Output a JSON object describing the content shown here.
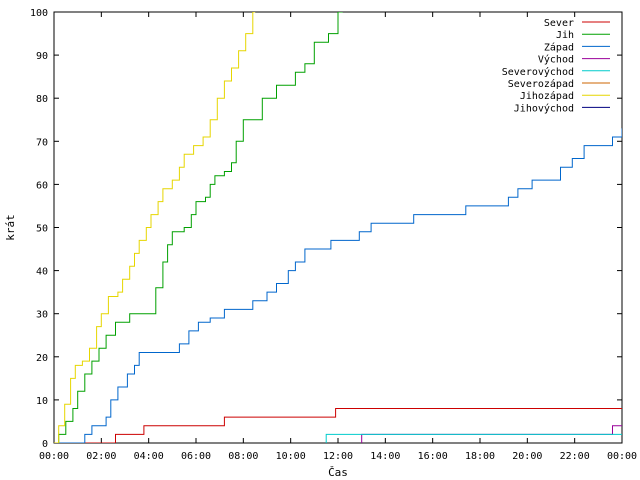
{
  "chart_data": {
    "type": "line",
    "title": "",
    "xlabel": "Čas",
    "ylabel": "krát",
    "xlim": [
      0,
      24
    ],
    "ylim": [
      0,
      100
    ],
    "x_ticks": [
      0,
      2,
      4,
      6,
      8,
      10,
      12,
      14,
      16,
      18,
      20,
      22,
      24
    ],
    "x_tick_labels": [
      "00:00",
      "02:00",
      "04:00",
      "06:00",
      "08:00",
      "10:00",
      "12:00",
      "14:00",
      "16:00",
      "18:00",
      "20:00",
      "22:00",
      "00:00"
    ],
    "y_ticks": [
      0,
      10,
      20,
      30,
      40,
      50,
      60,
      70,
      80,
      90,
      100
    ],
    "y_tick_labels": [
      "0",
      "10",
      "20",
      "30",
      "40",
      "50",
      "60",
      "70",
      "80",
      "90",
      "100"
    ],
    "legend_position": "top-right",
    "grid": false,
    "series": [
      {
        "name": "Sever",
        "color": "#cc0000",
        "points": [
          [
            0,
            0
          ],
          [
            2.6,
            0
          ],
          [
            2.6,
            2
          ],
          [
            3.8,
            2
          ],
          [
            3.8,
            4
          ],
          [
            7.2,
            4
          ],
          [
            7.2,
            6
          ],
          [
            11.9,
            6
          ],
          [
            11.9,
            8
          ],
          [
            24,
            8
          ]
        ]
      },
      {
        "name": "Jih",
        "color": "#00a000",
        "points": [
          [
            0,
            0
          ],
          [
            0.2,
            2
          ],
          [
            0.5,
            5
          ],
          [
            0.8,
            8
          ],
          [
            1,
            12
          ],
          [
            1.3,
            16
          ],
          [
            1.6,
            19
          ],
          [
            1.9,
            22
          ],
          [
            2.2,
            25
          ],
          [
            2.6,
            28
          ],
          [
            3.2,
            30
          ],
          [
            3.5,
            30
          ],
          [
            4,
            30
          ],
          [
            4.3,
            36
          ],
          [
            4.6,
            42
          ],
          [
            4.8,
            46
          ],
          [
            5,
            49
          ],
          [
            5.5,
            50
          ],
          [
            5.8,
            53
          ],
          [
            6,
            56
          ],
          [
            6.4,
            57
          ],
          [
            6.6,
            60
          ],
          [
            6.8,
            62
          ],
          [
            7.2,
            63
          ],
          [
            7.5,
            65
          ],
          [
            7.7,
            70
          ],
          [
            8,
            75
          ],
          [
            8.5,
            75
          ],
          [
            8.8,
            80
          ],
          [
            9.4,
            83
          ],
          [
            9.8,
            83
          ],
          [
            10.2,
            86
          ],
          [
            10.6,
            88
          ],
          [
            11,
            93
          ],
          [
            11.6,
            95
          ],
          [
            12,
            100
          ],
          [
            12.2,
            100
          ]
        ]
      },
      {
        "name": "Západ",
        "color": "#0066cc",
        "points": [
          [
            0,
            0
          ],
          [
            1.3,
            2
          ],
          [
            1.6,
            4
          ],
          [
            2.2,
            6
          ],
          [
            2.4,
            10
          ],
          [
            2.7,
            13
          ],
          [
            3.1,
            16
          ],
          [
            3.4,
            18
          ],
          [
            3.6,
            21
          ],
          [
            4.5,
            21
          ],
          [
            5.1,
            21
          ],
          [
            5.3,
            23
          ],
          [
            5.7,
            26
          ],
          [
            6.1,
            28
          ],
          [
            6.6,
            29
          ],
          [
            7.2,
            31
          ],
          [
            8.2,
            31
          ],
          [
            8.4,
            33
          ],
          [
            9,
            35
          ],
          [
            9.4,
            37
          ],
          [
            9.9,
            40
          ],
          [
            10.2,
            42
          ],
          [
            10.6,
            45
          ],
          [
            11.5,
            45
          ],
          [
            11.7,
            47
          ],
          [
            12.5,
            47
          ],
          [
            12.9,
            49
          ],
          [
            13.4,
            51
          ],
          [
            14.8,
            51
          ],
          [
            15.2,
            53
          ],
          [
            17,
            53
          ],
          [
            17.4,
            55
          ],
          [
            19,
            55
          ],
          [
            19.2,
            57
          ],
          [
            19.6,
            59
          ],
          [
            20.2,
            61
          ],
          [
            21.2,
            61
          ],
          [
            21.4,
            64
          ],
          [
            21.9,
            66
          ],
          [
            22.4,
            69
          ],
          [
            23.4,
            69
          ],
          [
            23.6,
            71
          ],
          [
            24,
            73
          ]
        ]
      },
      {
        "name": "Východ",
        "color": "#990099",
        "points": [
          [
            13,
            0
          ],
          [
            13,
            2
          ],
          [
            23.4,
            2
          ],
          [
            23.6,
            4
          ],
          [
            24,
            4
          ]
        ]
      },
      {
        "name": "Severovýchod",
        "color": "#00cccc",
        "points": [
          [
            11.5,
            0
          ],
          [
            11.5,
            2
          ],
          [
            24,
            2
          ]
        ]
      },
      {
        "name": "Severozápad",
        "color": "#cc6600",
        "points": []
      },
      {
        "name": "Jihozápad",
        "color": "#e6d600",
        "points": [
          [
            0,
            0
          ],
          [
            0.2,
            4
          ],
          [
            0.45,
            9
          ],
          [
            0.7,
            15
          ],
          [
            0.9,
            18
          ],
          [
            1.2,
            19
          ],
          [
            1.5,
            22
          ],
          [
            1.8,
            27
          ],
          [
            2,
            30
          ],
          [
            2.3,
            34
          ],
          [
            2.7,
            35
          ],
          [
            2.9,
            38
          ],
          [
            3.2,
            41
          ],
          [
            3.4,
            44
          ],
          [
            3.6,
            47
          ],
          [
            3.9,
            50
          ],
          [
            4.1,
            53
          ],
          [
            4.4,
            56
          ],
          [
            4.6,
            59
          ],
          [
            5,
            61
          ],
          [
            5.3,
            64
          ],
          [
            5.5,
            67
          ],
          [
            5.9,
            69
          ],
          [
            6.3,
            71
          ],
          [
            6.6,
            75
          ],
          [
            6.9,
            80
          ],
          [
            7.2,
            84
          ],
          [
            7.5,
            87
          ],
          [
            7.8,
            91
          ],
          [
            8.1,
            95
          ],
          [
            8.4,
            100
          ],
          [
            8.5,
            100
          ]
        ]
      },
      {
        "name": "Jihovýchod",
        "color": "#000080",
        "points": []
      }
    ]
  }
}
